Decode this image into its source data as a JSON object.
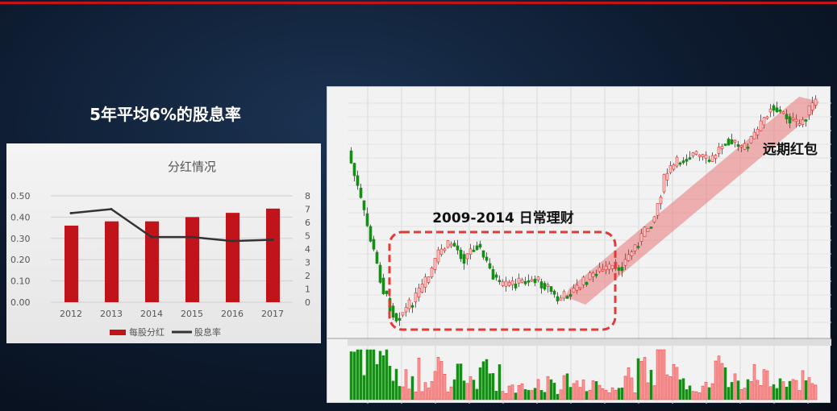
{
  "slide": {
    "title": "5年平均6%的股息率",
    "accent_color": "#c0141a"
  },
  "chart_data": {
    "type": "bar",
    "title": "分红情况",
    "categories": [
      "2012",
      "2013",
      "2014",
      "2015",
      "2016",
      "2017"
    ],
    "series": [
      {
        "name": "每股分红",
        "kind": "bar",
        "axis": "left",
        "color": "#c0141a",
        "values": [
          0.36,
          0.38,
          0.38,
          0.4,
          0.42,
          0.44
        ]
      },
      {
        "name": "股息率",
        "kind": "line",
        "axis": "right",
        "color": "#333333",
        "values": [
          6.7,
          7.0,
          4.9,
          4.9,
          4.6,
          4.7
        ]
      }
    ],
    "left_ticks": [
      "0.00",
      "0.10",
      "0.20",
      "0.30",
      "0.40",
      "0.50"
    ],
    "right_ticks": [
      "0",
      "1",
      "2",
      "3",
      "4",
      "5",
      "6",
      "7",
      "8"
    ],
    "ylim_left": [
      0,
      0.5
    ],
    "ylim_right": [
      0,
      8
    ],
    "grid": true,
    "legend": "bottom"
  },
  "stock_chart": {
    "annotation_range": "2009-2014 日常理财",
    "annotation_future": "远期红包",
    "up_color": "#e03030",
    "down_color": "#1a8a1a",
    "highlight_color": "#e53935"
  }
}
